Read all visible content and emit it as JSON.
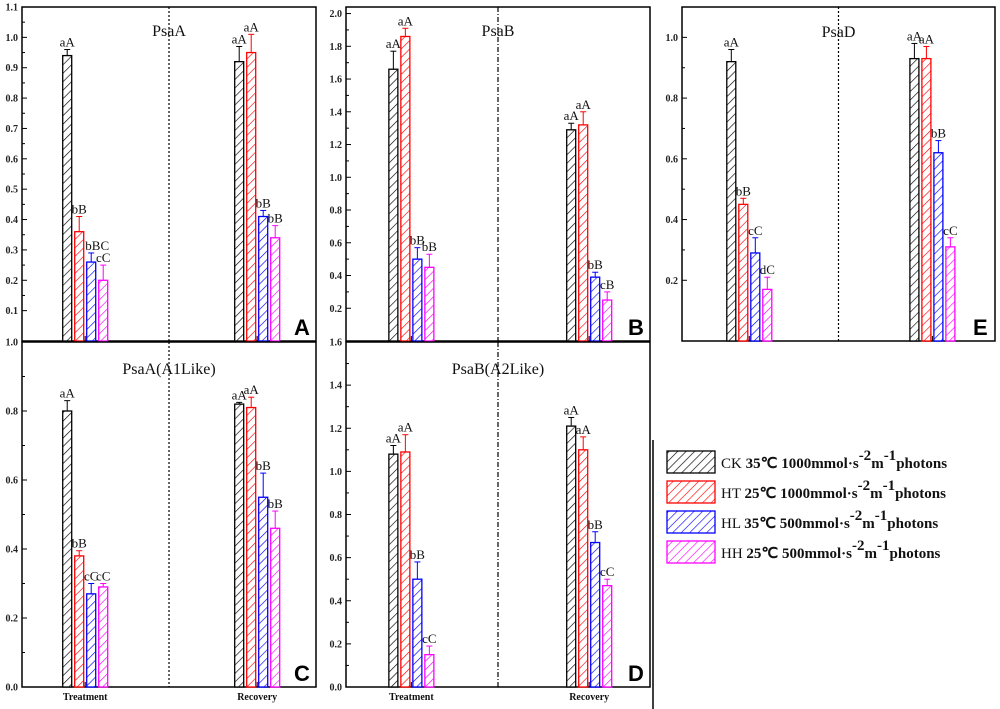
{
  "legend": [
    {
      "code": "CK",
      "label": "35℃ 1000mmol·s",
      "sup1": "-2",
      "mid": "m",
      "sup2": "-1",
      "tail": "photons",
      "color": "#000000"
    },
    {
      "code": "HT",
      "label": "25℃ 1000mmol·s",
      "sup1": "-2",
      "mid": "m",
      "sup2": "-1",
      "tail": "photons",
      "color": "#ff0000"
    },
    {
      "code": "HL",
      "label": "35℃ 500mmol·s",
      "sup1": "-2",
      "mid": "m",
      "sup2": "-1",
      "tail": "photons",
      "color": "#0000ff"
    },
    {
      "code": "HH",
      "label": "25℃ 500mmol·s",
      "sup1": "-2",
      "mid": "m",
      "sup2": "-1",
      "tail": "photons",
      "color": "#ff00ff"
    }
  ],
  "chart_data": [
    {
      "type": "bar",
      "panel": "A",
      "title": "PsaA",
      "categories": [
        "Treatment",
        "Recovery"
      ],
      "show_xlabels": false,
      "ylim": [
        0,
        1.1
      ],
      "yticks": [
        "0.1",
        "0.2",
        "0.3",
        "0.4",
        "0.5",
        "0.6",
        "0.7",
        "0.8",
        "0.9",
        "1.0",
        "1.1"
      ],
      "series": [
        {
          "name": "CK",
          "values": [
            0.94,
            0.92
          ],
          "errors": [
            0.02,
            0.05
          ],
          "labels": [
            "aA",
            "aA"
          ]
        },
        {
          "name": "HT",
          "values": [
            0.36,
            0.95
          ],
          "errors": [
            0.05,
            0.06
          ],
          "labels": [
            "bB",
            "aA"
          ]
        },
        {
          "name": "HL",
          "values": [
            0.26,
            0.41
          ],
          "errors": [
            0.03,
            0.02
          ],
          "labels": [
            "bBC",
            "bB"
          ]
        },
        {
          "name": "HH",
          "values": [
            0.2,
            0.34
          ],
          "errors": [
            0.05,
            0.04
          ],
          "labels": [
            "cC",
            "bB"
          ]
        }
      ]
    },
    {
      "type": "bar",
      "panel": "B",
      "title": "PsaB",
      "categories": [
        "Treatment",
        "Recovery"
      ],
      "show_xlabels": false,
      "ylim": [
        0,
        2.04
      ],
      "yticks": [
        "0.2",
        "0.4",
        "0.6",
        "0.8",
        "1.0",
        "1.2",
        "1.4",
        "1.6",
        "1.8",
        "2.0"
      ],
      "series": [
        {
          "name": "CK",
          "values": [
            1.66,
            1.29
          ],
          "errors": [
            0.11,
            0.04
          ],
          "labels": [
            "aA",
            "aA"
          ]
        },
        {
          "name": "HT",
          "values": [
            1.86,
            1.32
          ],
          "errors": [
            0.05,
            0.08
          ],
          "labels": [
            "aA",
            "aA"
          ]
        },
        {
          "name": "HL",
          "values": [
            0.5,
            0.39
          ],
          "errors": [
            0.07,
            0.03
          ],
          "labels": [
            "bB",
            "bB"
          ]
        },
        {
          "name": "HH",
          "values": [
            0.45,
            0.25
          ],
          "errors": [
            0.08,
            0.05
          ],
          "labels": [
            "bB",
            "cB"
          ]
        }
      ]
    },
    {
      "type": "bar",
      "panel": "E",
      "title": "PsaD",
      "categories": [
        "Treatment",
        "Recovery"
      ],
      "show_xlabels": false,
      "ylim": [
        0,
        1.1
      ],
      "yticks": [
        "0.2",
        "0.4",
        "0.6",
        "0.8",
        "1.0"
      ],
      "series": [
        {
          "name": "CK",
          "values": [
            0.92,
            0.93
          ],
          "errors": [
            0.04,
            0.05
          ],
          "labels": [
            "aA",
            "aA"
          ]
        },
        {
          "name": "HT",
          "values": [
            0.45,
            0.93
          ],
          "errors": [
            0.02,
            0.04
          ],
          "labels": [
            "bB",
            "aA"
          ]
        },
        {
          "name": "HL",
          "values": [
            0.29,
            0.62
          ],
          "errors": [
            0.05,
            0.04
          ],
          "labels": [
            "cC",
            "bB"
          ]
        },
        {
          "name": "HH",
          "values": [
            0.17,
            0.31
          ],
          "errors": [
            0.04,
            0.03
          ],
          "labels": [
            "dC",
            "cC"
          ]
        }
      ]
    },
    {
      "type": "bar",
      "panel": "C",
      "title": "PsaA(A1Like)",
      "categories": [
        "Treatment",
        "Recovery"
      ],
      "show_xlabels": true,
      "ylim": [
        0,
        1.0
      ],
      "yticks": [
        "0.0",
        "0.2",
        "0.4",
        "0.6",
        "0.8",
        "1.0"
      ],
      "series": [
        {
          "name": "CK",
          "values": [
            0.8,
            0.82
          ],
          "errors": [
            0.03,
            0.005
          ],
          "labels": [
            "aA",
            "aA"
          ]
        },
        {
          "name": "HT",
          "values": [
            0.38,
            0.81
          ],
          "errors": [
            0.015,
            0.03
          ],
          "labels": [
            "bB",
            "aA"
          ]
        },
        {
          "name": "HL",
          "values": [
            0.27,
            0.55
          ],
          "errors": [
            0.03,
            0.07
          ],
          "labels": [
            "cC",
            "bB"
          ]
        },
        {
          "name": "HH",
          "values": [
            0.29,
            0.46
          ],
          "errors": [
            0.01,
            0.05
          ],
          "labels": [
            "cC",
            "bB"
          ]
        }
      ]
    },
    {
      "type": "bar",
      "panel": "D",
      "title": "PsaB(A2Like)",
      "categories": [
        "Treatment",
        "Recovery"
      ],
      "show_xlabels": true,
      "ylim": [
        0,
        1.6
      ],
      "yticks": [
        "0.0",
        "0.2",
        "0.4",
        "0.6",
        "0.8",
        "1.0",
        "1.2",
        "1.4",
        "1.6"
      ],
      "series": [
        {
          "name": "CK",
          "values": [
            1.08,
            1.21
          ],
          "errors": [
            0.04,
            0.04
          ],
          "labels": [
            "aA",
            "aA"
          ]
        },
        {
          "name": "HT",
          "values": [
            1.09,
            1.1
          ],
          "errors": [
            0.08,
            0.06
          ],
          "labels": [
            "aA",
            "aA"
          ]
        },
        {
          "name": "HL",
          "values": [
            0.5,
            0.67
          ],
          "errors": [
            0.08,
            0.05
          ],
          "labels": [
            "bB",
            "bB"
          ]
        },
        {
          "name": "HH",
          "values": [
            0.15,
            0.47
          ],
          "errors": [
            0.04,
            0.03
          ],
          "labels": [
            "cC",
            "cC"
          ]
        }
      ]
    }
  ]
}
